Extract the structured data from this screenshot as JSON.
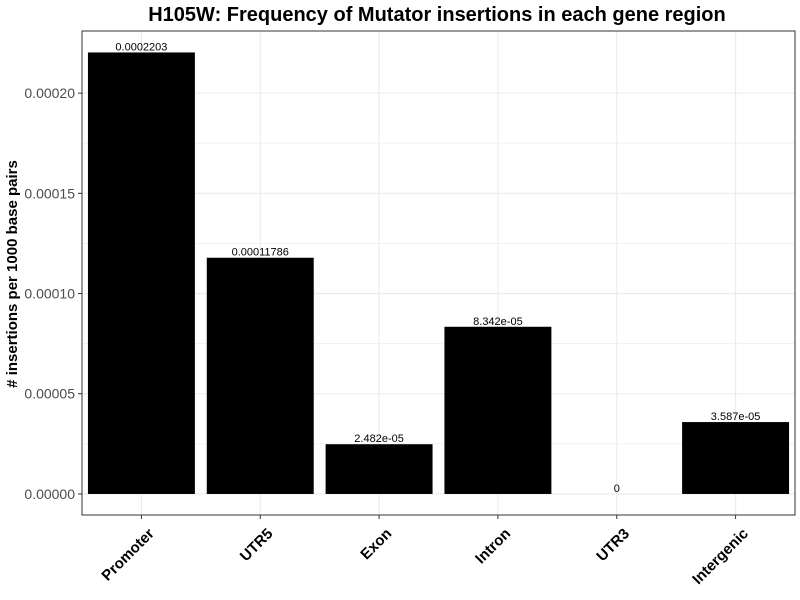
{
  "chart_data": {
    "type": "bar",
    "title": "H105W: Frequency of Mutator insertions in each gene region",
    "xlabel": "",
    "ylabel": "# insertions per 1000 base pairs",
    "categories": [
      "Promoter",
      "UTR5",
      "Exon",
      "Intron",
      "UTR3",
      "Intergenic"
    ],
    "values": [
      0.0002203,
      0.00011786,
      2.482e-05,
      8.342e-05,
      0,
      3.587e-05
    ],
    "data_labels": [
      "0.0002203",
      "0.00011786",
      "2.482e-05",
      "8.342e-05",
      "0",
      "3.587e-05"
    ],
    "yticks": [
      0,
      5e-05,
      0.0001,
      0.00015,
      0.0002
    ],
    "ytick_labels": [
      "0.00000",
      "0.00005",
      "0.00010",
      "0.00015",
      "0.00020"
    ],
    "ylim": [
      -1.05e-05,
      0.000231
    ],
    "bar_color": "#000000",
    "grid": true,
    "grid_color": "#ebebeb",
    "panel_border_color": "#333333",
    "x_tick_rotation": -45,
    "legend": "none"
  }
}
